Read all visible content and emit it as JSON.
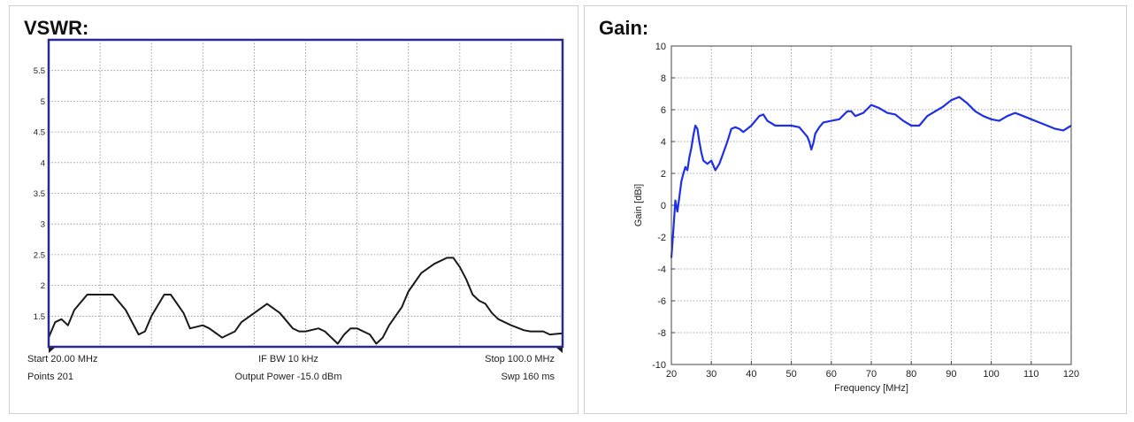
{
  "colors": {
    "vswr_frame": "#2a2a8a",
    "vswr_trace": "#1a1a1a",
    "gain_trace": "#1f2ee8",
    "grid": "#8a8a8a"
  },
  "vswr_panel": {
    "title": "VSWR:",
    "footer": {
      "start": "Start 20.00 MHz",
      "ifbw": "IF BW 10 kHz",
      "stop": "Stop 100.0 MHz",
      "points": "Points 201",
      "power": "Output Power -15.0 dBm",
      "sweep": "Swp 160 ms"
    }
  },
  "gain_panel": {
    "title": "Gain:"
  },
  "chart_data": [
    {
      "type": "line",
      "title": "VSWR:",
      "xlabel": "",
      "ylabel": "",
      "xlim": [
        20,
        100
      ],
      "ylim": [
        1,
        6
      ],
      "grid": true,
      "y_ticks": [
        "1.5",
        "2",
        "2.5",
        "3",
        "3.5",
        "4",
        "4.5",
        "5",
        "5.5"
      ],
      "y_tick_values": [
        1.5,
        2,
        2.5,
        3,
        3.5,
        4,
        4.5,
        5,
        5.5
      ],
      "series": [
        {
          "x": [
            20,
            21,
            22,
            23,
            24,
            26,
            28,
            30,
            32,
            34,
            35,
            36,
            38,
            39,
            41,
            42,
            44,
            45,
            47,
            48,
            49,
            50,
            52,
            54,
            56,
            58,
            59,
            60,
            62,
            63,
            65,
            66,
            67,
            68,
            70,
            71,
            72,
            73,
            75,
            76,
            78,
            80,
            82,
            83,
            84,
            85,
            86,
            87,
            88,
            89,
            90,
            92,
            94,
            95,
            97,
            98,
            100
          ],
          "values": [
            1.15,
            1.4,
            1.45,
            1.35,
            1.6,
            1.85,
            1.85,
            1.85,
            1.6,
            1.2,
            1.25,
            1.5,
            1.85,
            1.85,
            1.55,
            1.3,
            1.35,
            1.3,
            1.15,
            1.2,
            1.25,
            1.4,
            1.55,
            1.7,
            1.55,
            1.3,
            1.25,
            1.25,
            1.3,
            1.25,
            1.05,
            1.2,
            1.3,
            1.3,
            1.2,
            1.05,
            1.15,
            1.35,
            1.65,
            1.9,
            2.2,
            2.35,
            2.45,
            2.45,
            2.3,
            2.1,
            1.85,
            1.75,
            1.7,
            1.55,
            1.45,
            1.35,
            1.27,
            1.25,
            1.25,
            1.2,
            1.22
          ]
        }
      ]
    },
    {
      "type": "line",
      "title": "Gain:",
      "xlabel": "Frequency [MHz]",
      "ylabel": "Gain [dBi]",
      "xlim": [
        20,
        120
      ],
      "ylim": [
        -10,
        10
      ],
      "grid": true,
      "x_ticks": [
        20,
        30,
        40,
        50,
        60,
        70,
        80,
        90,
        100,
        110,
        120
      ],
      "y_ticks": [
        -10,
        -8,
        -6,
        -4,
        -2,
        0,
        2,
        4,
        6,
        8,
        10
      ],
      "series": [
        {
          "x": [
            20,
            20.5,
            21,
            21.5,
            22,
            22.5,
            23,
            23.5,
            24,
            24.5,
            25,
            25.5,
            26,
            26.5,
            27,
            27.5,
            28,
            29,
            30,
            31,
            32,
            33,
            34,
            35,
            36,
            37,
            38,
            40,
            42,
            43,
            44,
            46,
            48,
            50,
            52,
            54,
            54.5,
            55,
            55.5,
            56,
            57,
            58,
            60,
            62,
            64,
            65,
            66,
            68,
            70,
            72,
            74,
            76,
            78,
            80,
            82,
            84,
            86,
            88,
            90,
            92,
            94,
            96,
            98,
            100,
            102,
            104,
            106,
            108,
            110,
            112,
            114,
            116,
            118,
            120
          ],
          "values": [
            -3.3,
            -1.5,
            0.3,
            -0.4,
            0.5,
            1.5,
            2.0,
            2.4,
            2.2,
            3.0,
            3.6,
            4.4,
            5.0,
            4.8,
            4.0,
            3.3,
            2.8,
            2.6,
            2.8,
            2.2,
            2.6,
            3.3,
            4.0,
            4.8,
            4.9,
            4.8,
            4.6,
            5.0,
            5.6,
            5.7,
            5.3,
            5.0,
            5.0,
            5.0,
            4.9,
            4.3,
            4.0,
            3.5,
            3.9,
            4.5,
            4.9,
            5.2,
            5.3,
            5.4,
            5.9,
            5.9,
            5.6,
            5.8,
            6.3,
            6.1,
            5.8,
            5.7,
            5.3,
            5.0,
            5.0,
            5.6,
            5.9,
            6.2,
            6.6,
            6.8,
            6.4,
            5.9,
            5.6,
            5.4,
            5.3,
            5.6,
            5.8,
            5.6,
            5.4,
            5.2,
            5.0,
            4.8,
            4.7,
            5.0
          ]
        }
      ]
    }
  ]
}
